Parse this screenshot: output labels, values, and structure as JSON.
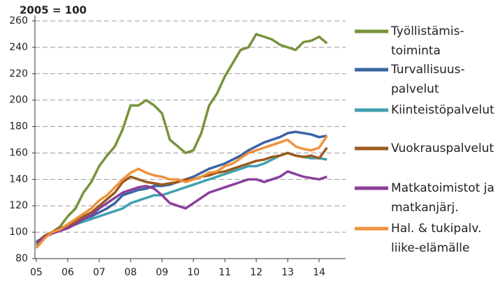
{
  "chart_data": {
    "type": "line",
    "title": "2005 = 100",
    "x": [
      5,
      5.25,
      5.5,
      5.75,
      6,
      6.25,
      6.5,
      6.75,
      7,
      7.25,
      7.5,
      7.75,
      8,
      8.25,
      8.5,
      8.75,
      9,
      9.25,
      9.5,
      9.75,
      10,
      10.25,
      10.5,
      10.75,
      11,
      11.25,
      11.5,
      11.75,
      12,
      12.25,
      12.5,
      12.75,
      13,
      13.25,
      13.5,
      13.75,
      14,
      14.25
    ],
    "series": [
      {
        "name": "Työllistämis-\ntoiminta",
        "color": "#77933c",
        "values": [
          90,
          97,
          100,
          104,
          112,
          118,
          130,
          138,
          150,
          158,
          165,
          178,
          196,
          196,
          200,
          196,
          190,
          170,
          165,
          160,
          162,
          175,
          196,
          205,
          218,
          228,
          238,
          240,
          250,
          248,
          246,
          242,
          240,
          238,
          244,
          245,
          248,
          243
        ]
      },
      {
        "name": "Turvallisuus-\npalvelut",
        "color": "#3a64a0",
        "values": [
          92,
          97,
          100,
          103,
          105,
          108,
          110,
          112,
          115,
          118,
          122,
          128,
          130,
          132,
          133,
          135,
          135,
          136,
          138,
          140,
          142,
          145,
          148,
          150,
          152,
          155,
          158,
          162,
          165,
          168,
          170,
          172,
          175,
          176,
          175,
          174,
          172,
          173
        ]
      },
      {
        "name": "Kiinteistöpalvelut",
        "color": "#3fa0b0",
        "values": [
          93,
          96,
          99,
          102,
          104,
          106,
          108,
          110,
          112,
          114,
          116,
          118,
          122,
          124,
          126,
          128,
          128,
          130,
          132,
          134,
          136,
          138,
          140,
          142,
          144,
          146,
          148,
          150,
          150,
          152,
          155,
          158,
          160,
          158,
          157,
          156,
          156,
          155
        ]
      },
      {
        "name": "Vuokrauspalvelut",
        "color": "#9c5a1e",
        "values": [
          92,
          97,
          100,
          103,
          105,
          108,
          112,
          115,
          120,
          125,
          130,
          138,
          142,
          140,
          138,
          137,
          136,
          137,
          138,
          140,
          140,
          142,
          143,
          145,
          146,
          148,
          150,
          152,
          154,
          155,
          157,
          158,
          160,
          158,
          157,
          158,
          156,
          164
        ]
      },
      {
        "name": "Matkatoimistot ja\nmatkanjärj.",
        "color": "#8a3f9a",
        "values": [
          92,
          96,
          99,
          101,
          103,
          106,
          110,
          113,
          118,
          122,
          126,
          130,
          132,
          134,
          135,
          133,
          128,
          122,
          120,
          118,
          122,
          126,
          130,
          132,
          134,
          136,
          138,
          140,
          140,
          138,
          140,
          142,
          146,
          144,
          142,
          141,
          140,
          142
        ]
      },
      {
        "name": "Hal. & tukipalv.\nliike-elämälle",
        "color": "#f0923c",
        "values": [
          88,
          95,
          100,
          102,
          106,
          110,
          114,
          118,
          124,
          128,
          134,
          140,
          145,
          148,
          145,
          143,
          142,
          140,
          140,
          138,
          140,
          142,
          145,
          146,
          150,
          152,
          156,
          160,
          162,
          164,
          166,
          168,
          170,
          165,
          163,
          162,
          164,
          173
        ]
      }
    ],
    "xlim": [
      5,
      15
    ],
    "xticks": [
      {
        "value": 5,
        "label": "05"
      },
      {
        "value": 6,
        "label": "06"
      },
      {
        "value": 7,
        "label": "07"
      },
      {
        "value": 8,
        "label": "08"
      },
      {
        "value": 9,
        "label": "09"
      },
      10,
      11,
      12,
      13,
      14
    ],
    "ylim": [
      80,
      260
    ],
    "yticks": [
      80,
      100,
      120,
      140,
      160,
      180,
      200,
      220,
      240,
      260
    ],
    "grid": true
  }
}
